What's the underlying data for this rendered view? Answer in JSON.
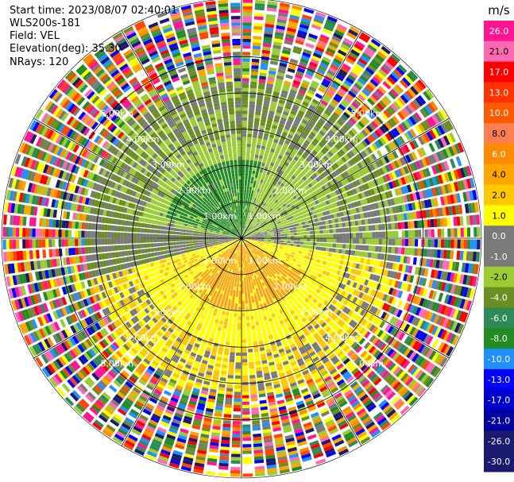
{
  "header": {
    "start_time": "Start time: 2023/08/07 02:40:01",
    "instrument": "WLS200s-181",
    "field": "Field: VEL",
    "elevation": "Elevation(deg): 35.30",
    "nrays": "NRays: 120"
  },
  "chart_data": {
    "type": "ppi",
    "field": "VEL",
    "units": "m/s",
    "nrays": 120,
    "elevation_deg": 35.3,
    "max_range_km": 6.6,
    "ring_labels": [
      "1.00km",
      "2.00km",
      "3.00km",
      "4.00km",
      "5.00km"
    ],
    "ring_ranges_km": [
      1,
      2,
      3,
      4,
      5
    ],
    "colorbar": {
      "units": "m/s",
      "tick_labels": [
        "26.0",
        "21.0",
        "17.0",
        "13.0",
        "10.0",
        "8.0",
        "6.0",
        "4.0",
        "2.0",
        "1.0",
        "0.0",
        "-1.0",
        "-2.0",
        "-4.0",
        "-6.0",
        "-8.0",
        "-10.0",
        "-13.0",
        "-17.0",
        "-21.0",
        "-26.0",
        "-30.0"
      ],
      "colors": [
        "#ff1493",
        "#ff69b4",
        "#ff0000",
        "#ff3300",
        "#ff5a00",
        "#ff7f50",
        "#ff8c00",
        "#ffa500",
        "#ffc800",
        "#ffff00",
        "#7a7a7a",
        "#7a7a7a",
        "#9acd32",
        "#6b8e23",
        "#2e8b57",
        "#228b22",
        "#1e90ff",
        "#0000ff",
        "#0000cd",
        "#0000a0",
        "#1a1a6e",
        "#191970"
      ]
    },
    "velocity_pattern": {
      "inner_negative_azimuth_deg": [
        280,
        75
      ],
      "inner_positive_azimuth_deg": [
        100,
        255
      ],
      "inner_core_dark_green_max_km": 2.2,
      "inner_core_orange_max_km": 2.0,
      "coherent_max_km": 4.0,
      "noise_start_km": 4.3
    }
  }
}
